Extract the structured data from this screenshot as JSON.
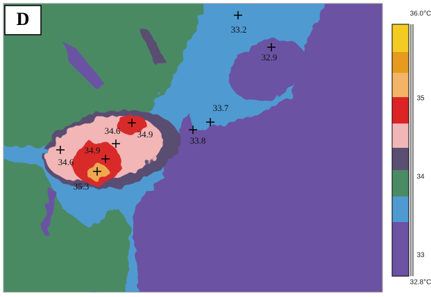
{
  "panel_label": "D",
  "points": [
    {
      "label": "33.2"
    },
    {
      "label": "32.9"
    },
    {
      "label": "33.7"
    },
    {
      "label": "33.8"
    },
    {
      "label": "34.6"
    },
    {
      "label": "34.9"
    },
    {
      "label": "34.9"
    },
    {
      "label": "34.6"
    },
    {
      "label": "35.3"
    }
  ],
  "colorbar": {
    "labels": [
      "36.0°C",
      "35",
      "34",
      "33",
      "32.8°C"
    ]
  }
}
